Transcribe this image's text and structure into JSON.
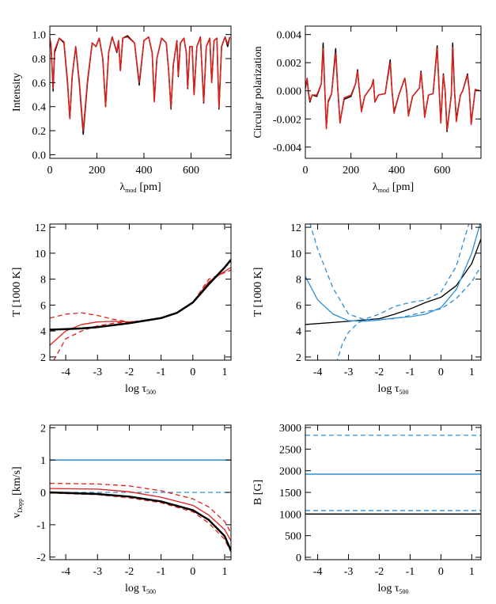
{
  "chart_data": [
    {
      "type": "line",
      "ylabel": "Intensity",
      "xlabel": {
        "text": "λ",
        "sub": "mod",
        "after": "[pm]"
      },
      "xlim": [
        0,
        770
      ],
      "xticks": [
        0,
        200,
        400,
        600
      ],
      "ylim": [
        -0.03,
        1.07
      ],
      "yticks": [
        {
          "value": 0,
          "label": "0.0"
        },
        0.2,
        0.4,
        0.6,
        0.8,
        {
          "value": 1,
          "label": "1.0"
        }
      ],
      "series": [
        {
          "color": "#000000",
          "width": 1.5,
          "x": [
            0,
            5,
            10,
            14,
            20,
            40,
            60,
            75,
            85,
            95,
            110,
            125,
            142,
            160,
            180,
            196,
            210,
            225,
            237,
            250,
            265,
            285,
            292,
            300,
            310,
            330,
            360,
            380,
            400,
            420,
            435,
            444,
            455,
            475,
            495,
            505,
            515,
            525,
            540,
            546,
            555,
            570,
            580,
            586,
            595,
            605,
            613,
            625,
            640,
            654,
            665,
            680,
            688,
            698,
            710,
            719,
            730,
            745,
            756,
            765
          ],
          "values": [
            0.95,
            0.9,
            0.7,
            0.53,
            0.85,
            0.97,
            0.93,
            0.6,
            0.3,
            0.65,
            0.9,
            0.6,
            0.17,
            0.6,
            0.93,
            0.9,
            0.97,
            0.8,
            0.4,
            0.85,
            0.98,
            0.85,
            0.95,
            0.7,
            0.97,
            0.99,
            0.93,
            0.58,
            0.95,
            0.98,
            0.85,
            0.45,
            0.8,
            0.97,
            0.93,
            0.7,
            0.38,
            0.75,
            0.95,
            0.65,
            0.93,
            0.97,
            0.85,
            0.55,
            0.9,
            0.9,
            0.5,
            0.9,
            0.98,
            0.43,
            0.9,
            0.97,
            0.6,
            0.95,
            0.97,
            0.38,
            0.9,
            0.98,
            0.9,
            0.98
          ]
        },
        {
          "color": "#e0201b",
          "width": 1.5,
          "x": [
            0,
            5,
            10,
            14,
            20,
            40,
            60,
            75,
            85,
            95,
            110,
            125,
            142,
            160,
            180,
            196,
            210,
            225,
            237,
            250,
            265,
            285,
            292,
            300,
            310,
            330,
            360,
            380,
            400,
            420,
            435,
            444,
            455,
            475,
            495,
            505,
            515,
            525,
            540,
            546,
            555,
            570,
            580,
            586,
            595,
            605,
            613,
            625,
            640,
            654,
            665,
            680,
            688,
            698,
            710,
            719,
            730,
            745,
            756,
            765
          ],
          "values": [
            0.97,
            0.92,
            0.72,
            0.55,
            0.87,
            0.97,
            0.94,
            0.62,
            0.3,
            0.66,
            0.9,
            0.62,
            0.2,
            0.62,
            0.93,
            0.9,
            0.97,
            0.8,
            0.4,
            0.85,
            0.98,
            0.86,
            0.95,
            0.7,
            0.97,
            0.98,
            0.93,
            0.6,
            0.95,
            0.98,
            0.85,
            0.44,
            0.8,
            0.97,
            0.93,
            0.7,
            0.39,
            0.75,
            0.95,
            0.66,
            0.93,
            0.97,
            0.85,
            0.56,
            0.9,
            0.9,
            0.5,
            0.9,
            0.98,
            0.44,
            0.9,
            0.97,
            0.6,
            0.95,
            0.97,
            0.39,
            0.9,
            0.98,
            0.92,
            0.98
          ]
        }
      ]
    },
    {
      "type": "line",
      "ylabel": "Circular polarization",
      "xlabel": {
        "text": "λ",
        "sub": "mod",
        "after": "[pm]"
      },
      "xlim": [
        0,
        770
      ],
      "xticks": [
        0,
        200,
        400,
        600
      ],
      "ylim": [
        -0.0048,
        0.0046
      ],
      "yticks": [
        -0.004,
        -0.002,
        {
          "value": 0,
          "label": "0.000"
        },
        0.002,
        0.004
      ],
      "series": [
        {
          "color": "#000000",
          "width": 1.5,
          "x": [
            0,
            8,
            14,
            20,
            30,
            50,
            70,
            78,
            85,
            92,
            100,
            115,
            133,
            142,
            152,
            170,
            200,
            220,
            229,
            237,
            246,
            260,
            290,
            298,
            305,
            320,
            350,
            372,
            380,
            389,
            410,
            436,
            444,
            452,
            470,
            500,
            507,
            515,
            523,
            540,
            560,
            578,
            586,
            594,
            605,
            613,
            621,
            640,
            646,
            654,
            662,
            680,
            690,
            711,
            719,
            727,
            745,
            765
          ],
          "values": [
            0.0002,
            0.0008,
            -0.0002,
            -0.0008,
            -0.0003,
            -0.0004,
            0.0005,
            0.0034,
            0.0002,
            -0.0026,
            -0.0008,
            -0.0002,
            0.003,
            0.0002,
            -0.0022,
            -0.0006,
            -0.0004,
            0.0005,
            0.0015,
            0,
            -0.0014,
            -0.0004,
            0.0003,
            0.0008,
            -0.0008,
            -0.0003,
            -0.0002,
            0.0022,
            0,
            -0.0015,
            -0.0003,
            0.0009,
            0,
            -0.0017,
            -0.0004,
            0.0002,
            0.0014,
            0,
            -0.0018,
            -0.0003,
            -0.0002,
            0.0032,
            0.0003,
            -0.0022,
            0.0012,
            0,
            -0.0029,
            -0.0003,
            0.0034,
            0,
            -0.002,
            -0.0003,
            0,
            0.0012,
            0,
            -0.0023,
            0.0001,
            0
          ]
        },
        {
          "color": "#e0201b",
          "width": 1.5,
          "x": [
            0,
            8,
            14,
            20,
            30,
            50,
            70,
            78,
            85,
            92,
            100,
            115,
            133,
            142,
            152,
            170,
            200,
            220,
            229,
            237,
            246,
            260,
            290,
            298,
            305,
            320,
            350,
            372,
            380,
            389,
            410,
            436,
            444,
            452,
            470,
            500,
            507,
            515,
            523,
            540,
            560,
            578,
            586,
            594,
            605,
            613,
            621,
            640,
            646,
            654,
            662,
            680,
            690,
            711,
            719,
            727,
            745,
            765
          ],
          "values": [
            0.0003,
            0.0009,
            -0.0001,
            -0.0007,
            -0.0003,
            -0.0003,
            0.0005,
            0.003,
            0.0002,
            -0.0027,
            -0.0007,
            -0.0002,
            0.0027,
            0.0002,
            -0.0023,
            -0.0005,
            -0.0003,
            0.0005,
            0.0014,
            0,
            -0.0015,
            -0.0004,
            0.0003,
            0.0008,
            -0.0008,
            -0.0003,
            -0.0002,
            0.002,
            0,
            -0.0016,
            -0.0003,
            0.0009,
            0,
            -0.0018,
            -0.0004,
            0.0002,
            0.0013,
            0,
            -0.0019,
            -0.0003,
            -0.0002,
            0.003,
            0.0003,
            -0.0023,
            0.0011,
            0,
            -0.0028,
            -0.0003,
            0.0031,
            0,
            -0.0022,
            -0.0003,
            0,
            0.0011,
            0,
            -0.0024,
            0.0001,
            0
          ]
        }
      ]
    },
    {
      "type": "line",
      "ylabel": "T [1000 K]",
      "xlabel": {
        "text": "log τ",
        "sub": "500"
      },
      "xlim": [
        -4.5,
        1.2
      ],
      "xticks": [
        -4,
        -3,
        -2,
        -1,
        0,
        1
      ],
      "ylim": [
        1.75,
        12.25
      ],
      "yticks": [
        2,
        4,
        6,
        8,
        10,
        12
      ],
      "series": [
        {
          "color": "#e0201b",
          "width": 1.3,
          "dash": true,
          "x": [
            -4.5,
            -4,
            -3.5,
            -3,
            -2.5,
            -2,
            -1.5,
            -1,
            -0.5,
            0,
            0.5,
            1,
            1.2
          ],
          "values": [
            5.0,
            5.3,
            5.4,
            5.2,
            4.9,
            4.7,
            4.8,
            5.0,
            5.4,
            6.2,
            8.0,
            8.5,
            8.7
          ]
        },
        {
          "color": "#e0201b",
          "width": 1.3,
          "dash": true,
          "x": [
            -4.5,
            -4,
            -3.5,
            -3,
            -2.5,
            -2,
            -1.5,
            -1,
            -0.5,
            0,
            0.5,
            1,
            1.2
          ],
          "values": [
            1.2,
            3.4,
            4.0,
            4.4,
            4.6,
            4.7,
            4.8,
            5.0,
            5.4,
            6.2,
            7.7,
            8.9,
            9.3
          ]
        },
        {
          "color": "#e0201b",
          "width": 1.3,
          "x": [
            -4.5,
            -4,
            -3.5,
            -3,
            -2.5,
            -2,
            -1.5,
            -1,
            -0.5,
            0,
            0.5,
            1,
            1.2
          ],
          "values": [
            2.9,
            4.0,
            4.5,
            4.7,
            4.75,
            4.7,
            4.8,
            5.0,
            5.4,
            6.2,
            7.8,
            8.6,
            8.9
          ]
        },
        {
          "color": "#000000",
          "width": 2.5,
          "x": [
            -4.5,
            -4,
            -3.5,
            -3,
            -2.5,
            -2,
            -1.5,
            -1,
            -0.5,
            0,
            0.5,
            1,
            1.2
          ],
          "values": [
            4.1,
            4.15,
            4.2,
            4.3,
            4.45,
            4.6,
            4.8,
            5.0,
            5.4,
            6.2,
            7.6,
            8.9,
            9.5
          ]
        }
      ]
    },
    {
      "type": "line",
      "ylabel": "T [1000 K]",
      "xlabel": {
        "text": "log τ",
        "sub": "500"
      },
      "xlim": [
        -4.4,
        1.3
      ],
      "xticks": [
        -4,
        -3,
        -2,
        -1,
        0,
        1
      ],
      "ylim": [
        1.75,
        12.25
      ],
      "yticks": [
        2,
        4,
        6,
        8,
        10,
        12
      ],
      "series": [
        {
          "color": "#000000",
          "width": 1.3,
          "x": [
            -4.4,
            -3,
            -2,
            -1.5,
            -1,
            -0.5,
            0,
            0.5,
            1,
            1.3
          ],
          "values": [
            4.5,
            4.75,
            4.95,
            5.3,
            5.7,
            6.2,
            6.6,
            7.5,
            9.2,
            11.1
          ]
        },
        {
          "color": "#2b8fd6",
          "width": 1.3,
          "x": [
            -4.4,
            -4,
            -3.5,
            -3,
            -2.5,
            -2,
            -1.5,
            -1,
            -0.5,
            0,
            0.5,
            1,
            1.3
          ],
          "values": [
            8.2,
            6.4,
            5.3,
            4.8,
            4.75,
            4.85,
            5.0,
            5.1,
            5.3,
            5.8,
            7.2,
            10.0,
            12.5
          ]
        },
        {
          "color": "#2b8fd6",
          "width": 1.3,
          "dash": true,
          "x": [
            -4.4,
            -4,
            -3.5,
            -3,
            -2.5,
            -2,
            -1.5,
            -1,
            -0.5,
            0,
            0.5,
            1
          ],
          "values": [
            13.5,
            10.3,
            7.3,
            5.3,
            4.9,
            5.3,
            5.9,
            6.2,
            6.4,
            7.0,
            9.0,
            13.0
          ]
        },
        {
          "color": "#2b8fd6",
          "width": 1.3,
          "dash": true,
          "x": [
            -3.4,
            -3.2,
            -3,
            -2.7,
            -2.5,
            -2,
            -1.5,
            -1,
            -0.5,
            0,
            0.5,
            1,
            1.3
          ],
          "values": [
            1.5,
            3.0,
            3.9,
            4.6,
            4.85,
            4.9,
            4.95,
            5.2,
            5.5,
            5.7,
            6.5,
            7.8,
            9.0
          ]
        }
      ]
    },
    {
      "type": "line",
      "ylabel": {
        "text": "v",
        "sub": "Dopp",
        "after": "[km/s]"
      },
      "xlabel": {
        "text": "log τ",
        "sub": "500"
      },
      "xlim": [
        -4.5,
        1.2
      ],
      "xticks": [
        -4,
        -3,
        -2,
        -1,
        0,
        1
      ],
      "ylim": [
        -2.08,
        2.08
      ],
      "yticks": [
        -2,
        -1,
        0,
        1,
        2
      ],
      "series": [
        {
          "color": "#2b8fd6",
          "width": 1.5,
          "x": [
            -4.5,
            1.2
          ],
          "values": [
            1,
            1
          ]
        },
        {
          "color": "#2b8fd6",
          "width": 1.3,
          "dash": true,
          "x": [
            -4.5,
            1.2
          ],
          "values": [
            0,
            0
          ]
        },
        {
          "color": "#e0201b",
          "width": 1.3,
          "dash": true,
          "x": [
            -4.5,
            -3,
            -2,
            -1,
            0,
            0.5,
            1,
            1.2
          ],
          "values": [
            0.28,
            0.26,
            0.2,
            0.05,
            -0.2,
            -0.45,
            -0.9,
            -1.25
          ]
        },
        {
          "color": "#e0201b",
          "width": 1.3,
          "dash": true,
          "x": [
            -4.5,
            -3,
            -2,
            -1,
            0,
            0.5,
            1,
            1.2
          ],
          "values": [
            -0.02,
            -0.07,
            -0.17,
            -0.32,
            -0.6,
            -0.95,
            -1.45,
            -1.85
          ]
        },
        {
          "color": "#e0201b",
          "width": 1.3,
          "x": [
            -4.5,
            -3,
            -2,
            -1,
            0,
            0.5,
            1,
            1.2
          ],
          "values": [
            0.12,
            0.1,
            0.02,
            -0.15,
            -0.4,
            -0.7,
            -1.15,
            -1.5
          ]
        },
        {
          "color": "#000000",
          "width": 2.5,
          "x": [
            -4.5,
            -3,
            -2,
            -1,
            0,
            0.5,
            1,
            1.2
          ],
          "values": [
            0.0,
            -0.05,
            -0.13,
            -0.28,
            -0.55,
            -0.85,
            -1.35,
            -1.8
          ]
        }
      ]
    },
    {
      "type": "line",
      "ylabel": "B [G]",
      "xlabel": {
        "text": "log τ",
        "sub": "500"
      },
      "xlim": [
        -4.4,
        1.3
      ],
      "xticks": [
        -4,
        -3,
        -2,
        -1,
        0,
        1
      ],
      "ylim": [
        -55,
        3055
      ],
      "yticks": [
        0,
        500,
        1000,
        1500,
        2000,
        2500,
        3000
      ],
      "series": [
        {
          "color": "#000000",
          "width": 1.5,
          "x": [
            -4.4,
            1.3
          ],
          "values": [
            1000,
            1000
          ]
        },
        {
          "color": "#2b8fd6",
          "width": 1.5,
          "x": [
            -4.4,
            1.3
          ],
          "values": [
            1920,
            1920
          ]
        },
        {
          "color": "#2b8fd6",
          "width": 1.3,
          "dash": true,
          "x": [
            -4.4,
            1.3
          ],
          "values": [
            2820,
            2820
          ]
        },
        {
          "color": "#2b8fd6",
          "width": 1.3,
          "dash": true,
          "x": [
            -4.4,
            1.3
          ],
          "values": [
            1080,
            1080
          ]
        }
      ]
    }
  ]
}
